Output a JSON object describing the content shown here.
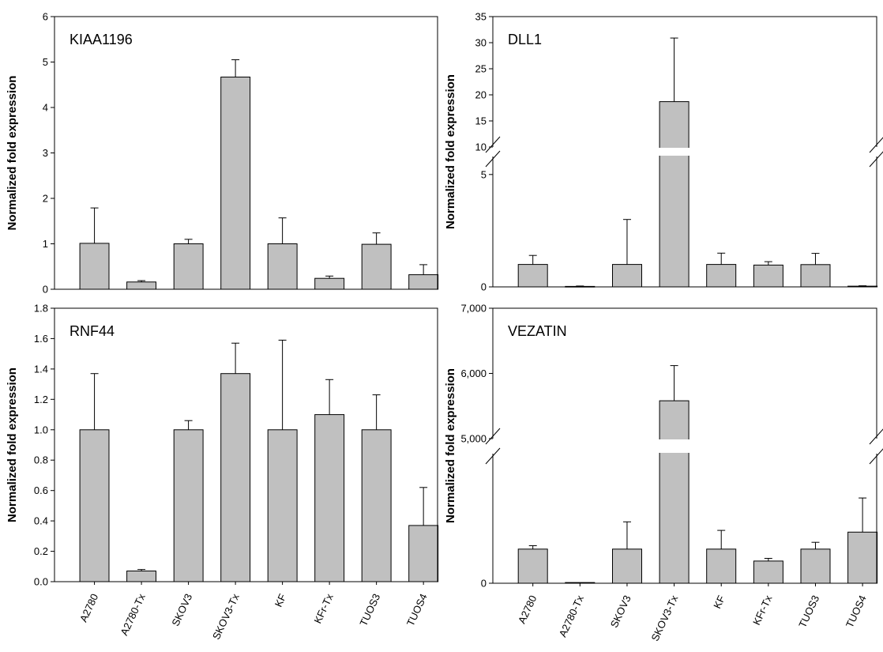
{
  "figure": {
    "ylabel": "Normalized fold expression"
  },
  "categories": [
    "A2780",
    "A2780-Tx",
    "SKOV3",
    "SKOV3-Tx",
    "KF",
    "KFr-Tx",
    "TUOS3",
    "TUOS4"
  ],
  "style": {
    "bar_fill": "#c0c0c0",
    "bar_stroke": "#000000",
    "axis_color": "#000000"
  },
  "chart_data": [
    {
      "type": "bar",
      "title": "KIAA1196",
      "ylabel": "Normalized fold expression",
      "categories": [
        "A2780",
        "A2780-Tx",
        "SKOV3",
        "SKOV3-Tx",
        "KF",
        "KFr-Tx",
        "TUOS3",
        "TUOS4"
      ],
      "values": [
        1.01,
        0.16,
        1.0,
        4.67,
        1.0,
        0.24,
        0.99,
        0.32
      ],
      "errors": [
        0.78,
        0.03,
        0.1,
        0.38,
        0.57,
        0.05,
        0.25,
        0.22
      ],
      "ylim": [
        0,
        6
      ],
      "yticks": [
        0,
        1,
        2,
        3,
        4,
        5,
        6
      ],
      "ytick_labels": [
        "0",
        "1",
        "2",
        "3",
        "4",
        "5",
        "6"
      ],
      "show_category_labels": false,
      "axis_break": null
    },
    {
      "type": "bar",
      "title": "DLL1",
      "ylabel": "Normalized fold expression",
      "categories": [
        "A2780",
        "A2780-Tx",
        "SKOV3",
        "SKOV3-Tx",
        "KF",
        "KFr-Tx",
        "TUOS3",
        "TUOS4"
      ],
      "values": [
        1.0,
        0.02,
        1.0,
        18.7,
        1.0,
        0.97,
        0.99,
        0.03
      ],
      "errors": [
        0.4,
        0.02,
        2.0,
        12.2,
        0.5,
        0.15,
        0.5,
        0.02
      ],
      "ylim": [
        0,
        35
      ],
      "yticks": [
        0,
        5,
        10,
        15,
        20,
        25,
        30,
        35
      ],
      "ytick_labels": [
        "0",
        "5",
        "10",
        "15",
        "20",
        "25",
        "30",
        "35"
      ],
      "show_category_labels": false,
      "axis_break": {
        "lower_range": [
          0,
          5.8
        ],
        "upper_range": [
          10,
          35
        ]
      }
    },
    {
      "type": "bar",
      "title": "RNF44",
      "ylabel": "Normalized fold expression",
      "categories": [
        "A2780",
        "A2780-Tx",
        "SKOV3",
        "SKOV3-Tx",
        "KF",
        "KFr-Tx",
        "TUOS3",
        "TUOS4"
      ],
      "values": [
        1.0,
        0.07,
        1.0,
        1.37,
        1.0,
        1.1,
        1.0,
        0.37
      ],
      "errors": [
        0.37,
        0.01,
        0.06,
        0.2,
        0.59,
        0.23,
        0.23,
        0.25
      ],
      "ylim": [
        0,
        1.8
      ],
      "yticks": [
        0,
        0.2,
        0.4,
        0.6,
        0.8,
        1.0,
        1.2,
        1.4,
        1.6,
        1.8
      ],
      "ytick_labels": [
        "0.0",
        "0.2",
        "0.4",
        "0.6",
        "0.8",
        "1.0",
        "1.2",
        "1.4",
        "1.6",
        "1.8"
      ],
      "show_category_labels": true,
      "axis_break": null
    },
    {
      "type": "bar",
      "title": "VEZATIN",
      "ylabel": "Normalized fold expression",
      "categories": [
        "A2780",
        "A2780-Tx",
        "SKOV3",
        "SKOV3-Tx",
        "KF",
        "KFr-Tx",
        "TUOS3",
        "TUOS4"
      ],
      "values": [
        1.0,
        0.02,
        1.0,
        5580,
        1.0,
        0.65,
        1.0,
        1.5
      ],
      "errors": [
        0.1,
        0.01,
        0.8,
        540,
        0.55,
        0.08,
        0.2,
        1.0
      ],
      "ylim": [
        0,
        7000
      ],
      "yticks": [
        0,
        5000,
        6000,
        7000
      ],
      "ytick_labels": [
        "0",
        "5,000",
        "6,000",
        "7,000"
      ],
      "show_category_labels": true,
      "axis_break": {
        "lower_range": [
          0,
          3.8
        ],
        "upper_range": [
          5000,
          7000
        ]
      }
    }
  ]
}
